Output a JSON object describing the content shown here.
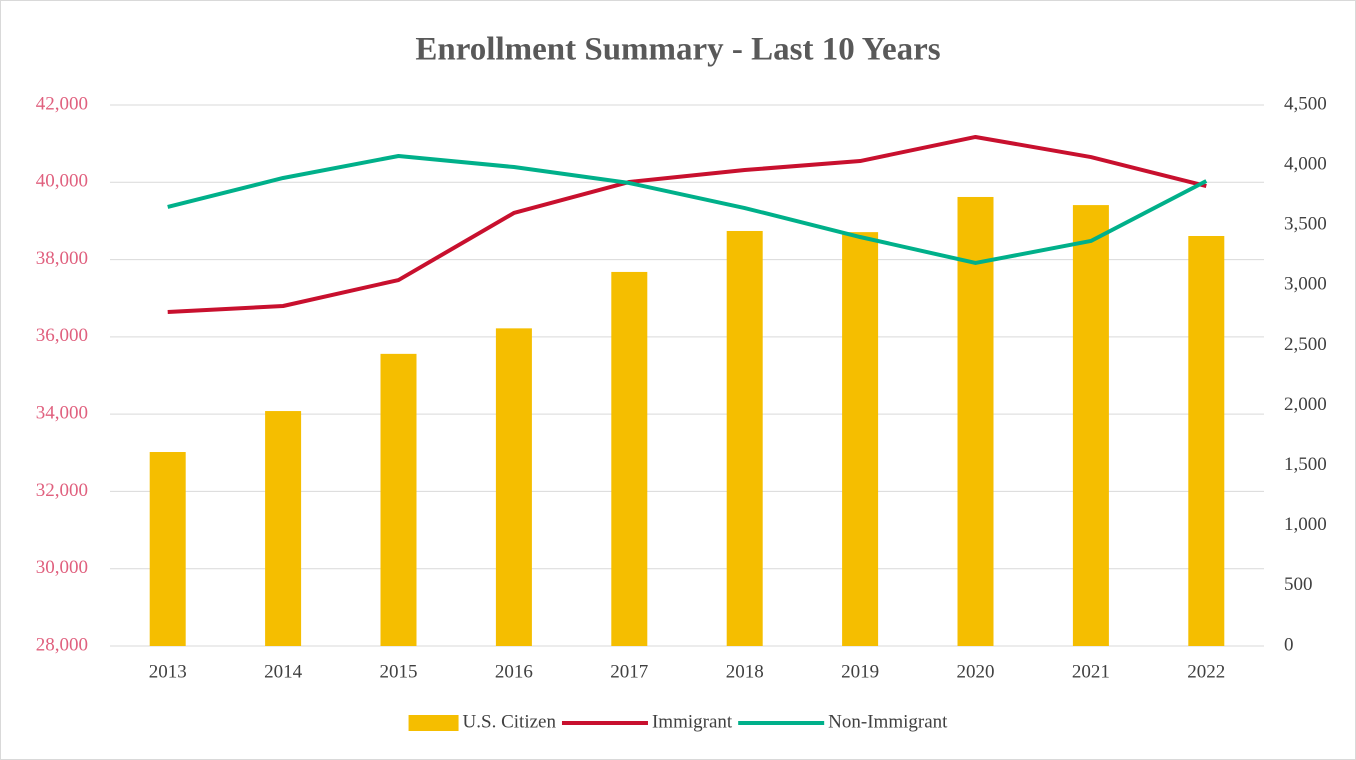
{
  "chart_data": {
    "type": "combo",
    "title": "Enrollment Summary - Last 10 Years",
    "categories": [
      "2013",
      "2014",
      "2015",
      "2016",
      "2017",
      "2018",
      "2019",
      "2020",
      "2021",
      "2022"
    ],
    "series": [
      {
        "name": "U.S. Citizen",
        "type": "bar",
        "color": "#f5be00",
        "values": [
          33020,
          34080,
          35560,
          36220,
          37680,
          38740,
          38710,
          39620,
          39410,
          38610
        ]
      },
      {
        "name": "Immigrant",
        "type": "line",
        "axis": "y2",
        "color": "#c8102e",
        "values": [
          2778,
          2828,
          3044,
          3602,
          3860,
          3959,
          4034,
          4234,
          4067,
          3826
        ]
      },
      {
        "name": "Non-Immigrant",
        "type": "line",
        "axis": "y2",
        "color": "#00b08a",
        "values": [
          3652,
          3893,
          4076,
          3984,
          3851,
          3643,
          3402,
          3186,
          3369,
          3868
        ]
      }
    ],
    "ylim": [
      28000,
      42000
    ],
    "yticks": [
      {
        "value": 28000,
        "label": "28,000"
      },
      {
        "value": 30000,
        "label": "30,000"
      },
      {
        "value": 32000,
        "label": "32,000"
      },
      {
        "value": 34000,
        "label": "34,000"
      },
      {
        "value": 36000,
        "label": "36,000"
      },
      {
        "value": 38000,
        "label": "38,000"
      },
      {
        "value": 40000,
        "label": "40,000"
      },
      {
        "value": 42000,
        "label": "42,000"
      }
    ],
    "y2lim": [
      0,
      4500
    ],
    "y2ticks": [
      0,
      500,
      {
        "value": 1000,
        "label": "1,000"
      },
      {
        "value": 1500,
        "label": "1,500"
      },
      {
        "value": 2000,
        "label": "2,000"
      },
      {
        "value": 2500,
        "label": "2,500"
      },
      {
        "value": 3000,
        "label": "3,000"
      },
      {
        "value": 3500,
        "label": "3,500"
      },
      {
        "value": 4000,
        "label": "4,000"
      },
      {
        "value": 4500,
        "label": "4,500"
      }
    ],
    "grid": true,
    "legend": "bottom"
  }
}
